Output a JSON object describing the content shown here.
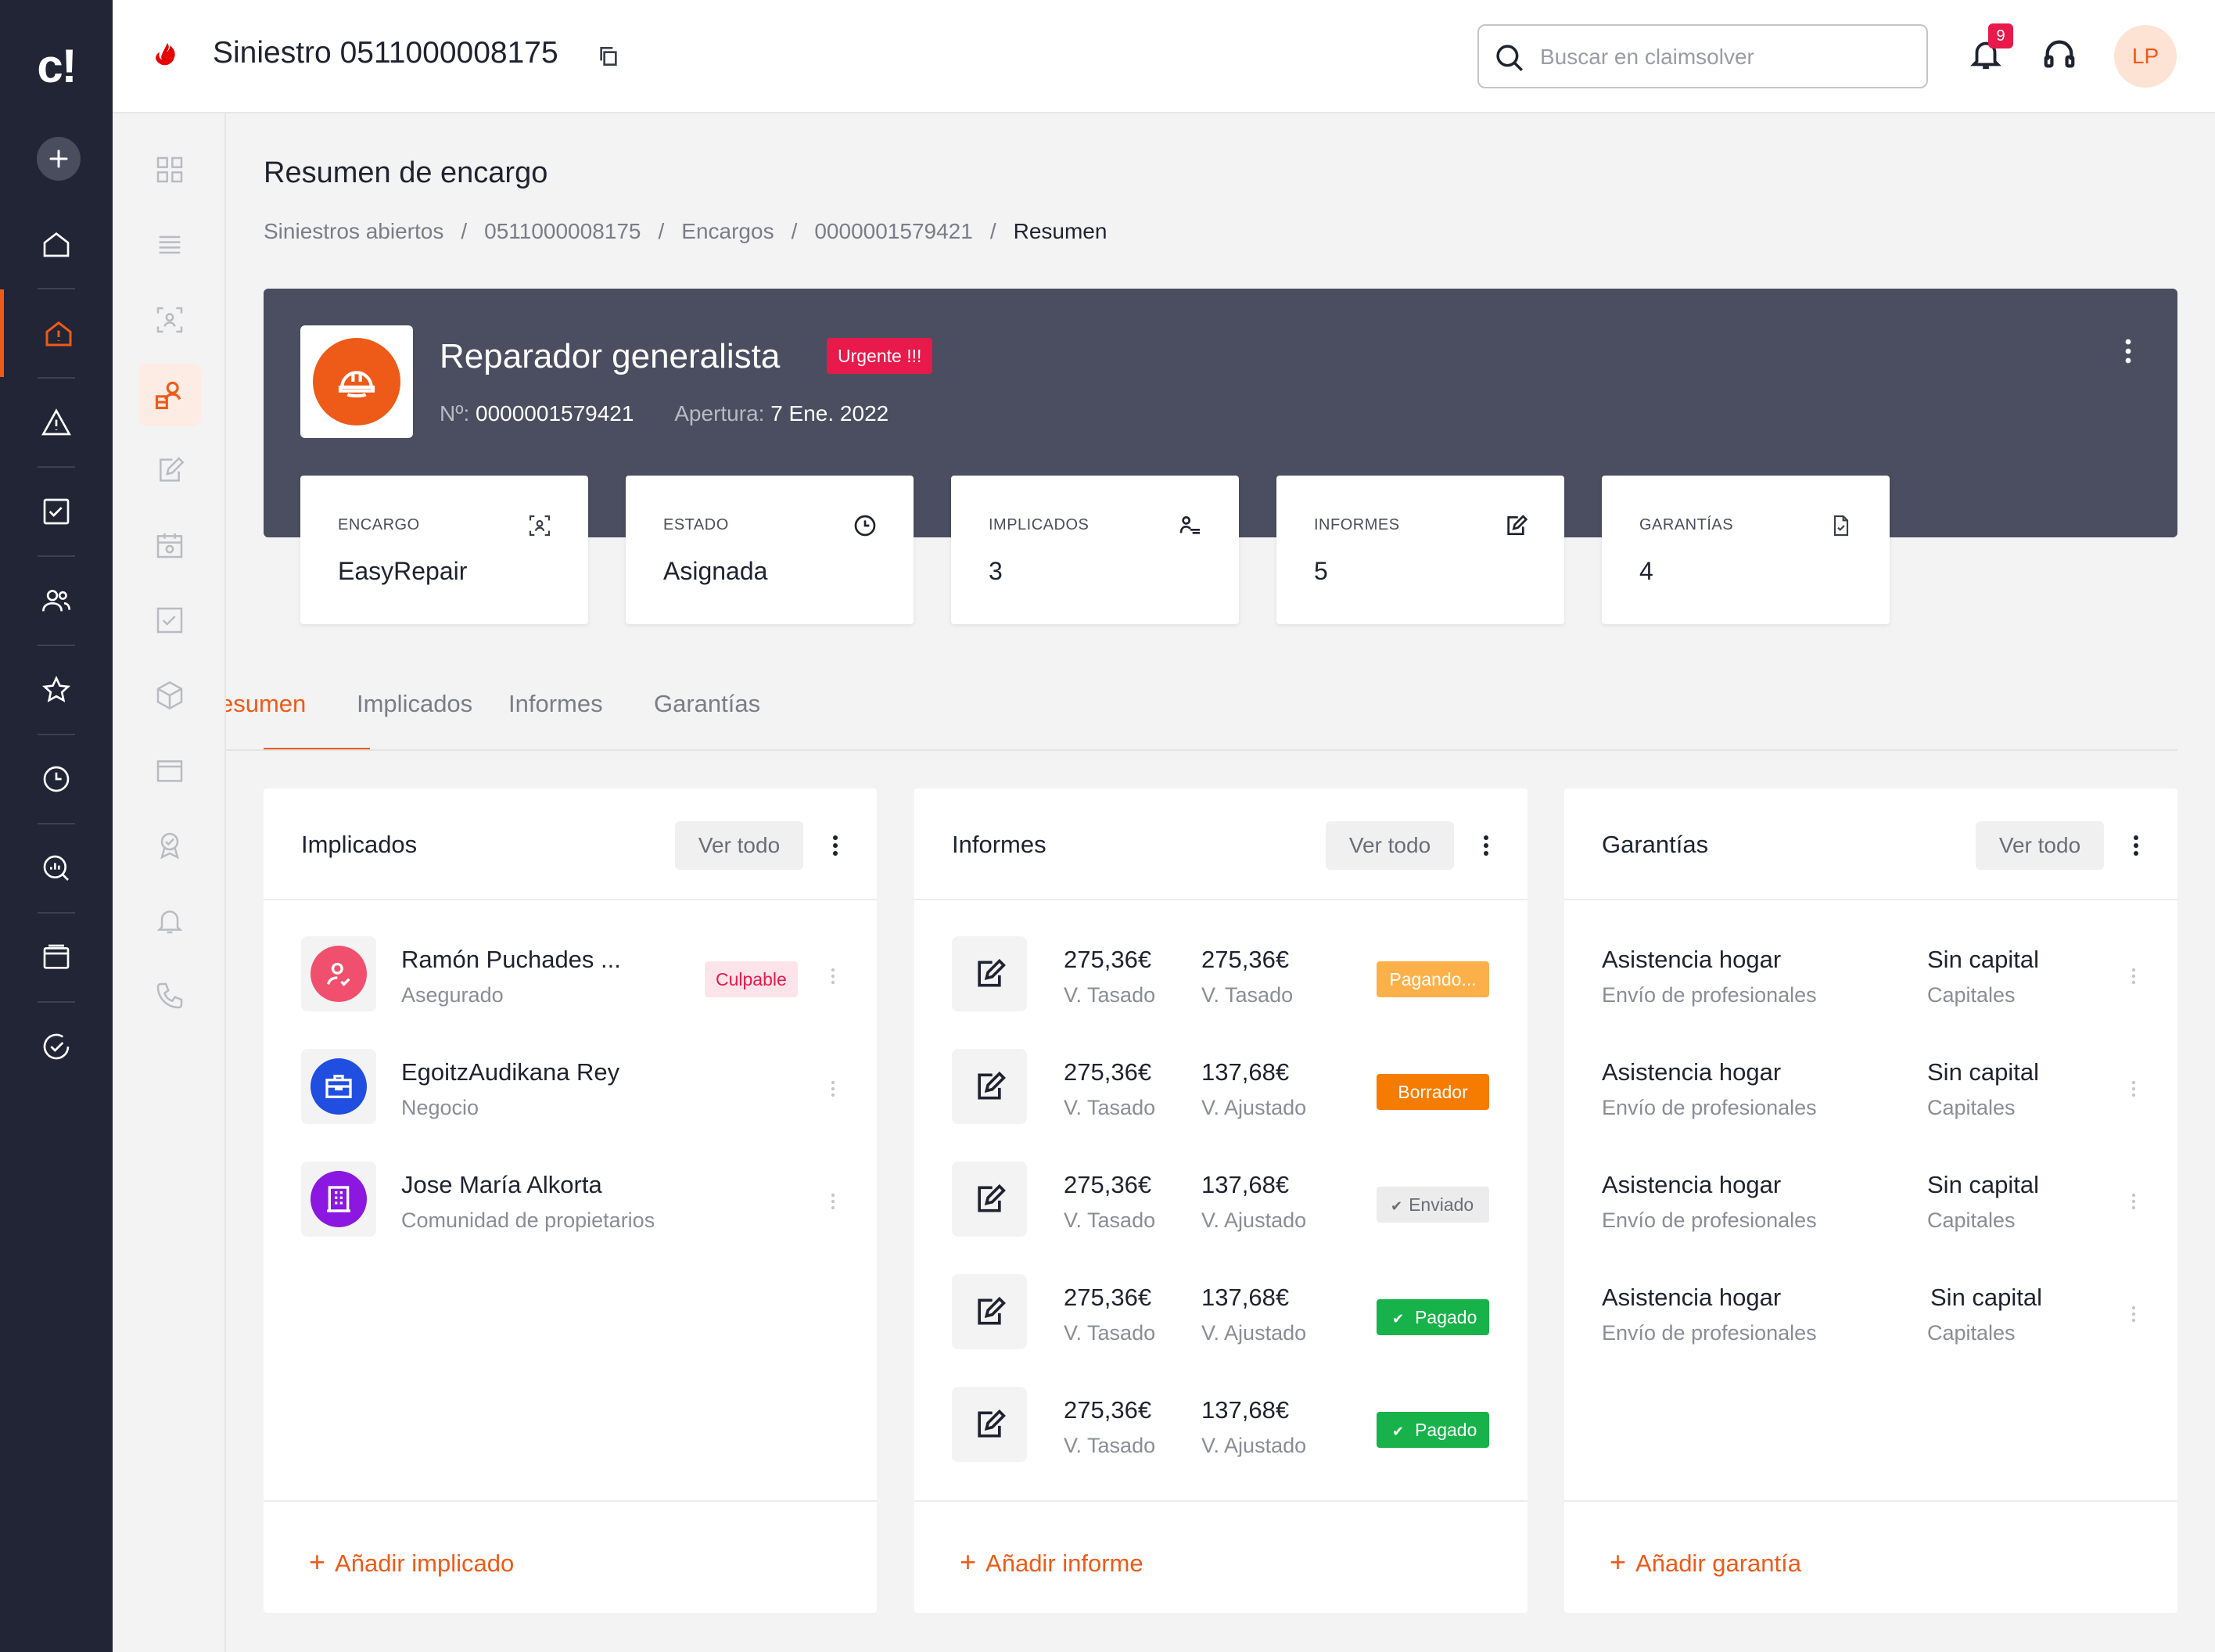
{
  "colors": {
    "accent": "#ee5a18",
    "sidebar": "#222536",
    "hero": "#4b4e60",
    "danger": "#e8194b"
  },
  "app": {
    "logo": "c!"
  },
  "nav": {
    "icons": [
      "plus-icon",
      "home-icon",
      "claim-alert-icon",
      "warning-icon",
      "checkbox-icon",
      "users-icon",
      "star-icon",
      "clock-icon",
      "analytics-icon",
      "window-icon",
      "check-circle-icon"
    ]
  },
  "header": {
    "title": "Siniestro 0511000008175",
    "search_placeholder": "Buscar en claimsolver",
    "notifications": "9",
    "avatar": "LP"
  },
  "page": {
    "title": "Resumen de encargo"
  },
  "breadcrumb": [
    "Siniestros abiertos",
    "0511000008175",
    "Encargos",
    "0000001579421",
    "Resumen"
  ],
  "hero": {
    "title": "Reparador generalista",
    "badge": "Urgente !!!",
    "number_label": "Nº:",
    "number": "0000001579421",
    "opening_label": "Apertura:",
    "opening": "7 Ene. 2022"
  },
  "stats": [
    {
      "label": "ENCARGO",
      "value": "EasyRepair",
      "icon": "assign-icon"
    },
    {
      "label": "ESTADO",
      "value": "Asignada",
      "icon": "clock-icon"
    },
    {
      "label": "IMPLICADOS",
      "value": "3",
      "icon": "involved-icon"
    },
    {
      "label": "INFORMES",
      "value": "5",
      "icon": "report-icon"
    },
    {
      "label": "GARANTÍAS",
      "value": "4",
      "icon": "guarantee-icon"
    }
  ],
  "tabs": [
    "esumen",
    "Implicados",
    "Informes",
    "Garantías"
  ],
  "implicados": {
    "title": "Implicados",
    "view_all": "Ver todo",
    "add": "Añadir implicado",
    "rows": [
      {
        "name": "Ramón Puchades ...",
        "role": "Asegurado",
        "tag": "Culpable",
        "color": "#f0506e"
      },
      {
        "name": "EgoitzAudikana Rey",
        "role": "Negocio",
        "tag": "",
        "color": "#1f4ee0"
      },
      {
        "name": "Jose María Alkorta",
        "role": "Comunidad de propietarios",
        "tag": "",
        "color": "#8b17e0"
      }
    ]
  },
  "informes": {
    "title": "Informes",
    "view_all": "Ver todo",
    "add": "Añadir informe",
    "rows": [
      {
        "v1": "275,36€",
        "l1": "V. Tasado",
        "v2": "275,36€",
        "l2": "V. Tasado",
        "status": "Pagando..."
      },
      {
        "v1": "275,36€",
        "l1": "V. Tasado",
        "v2": "137,68€",
        "l2": "V. Ajustado",
        "status": "Borrador"
      },
      {
        "v1": "275,36€",
        "l1": "V. Tasado",
        "v2": "137,68€",
        "l2": "V. Ajustado",
        "status": "Enviado"
      },
      {
        "v1": "275,36€",
        "l1": "V. Tasado",
        "v2": "137,68€",
        "l2": "V. Ajustado",
        "status": "Pagado"
      },
      {
        "v1": "275,36€",
        "l1": "V. Tasado",
        "v2": "137,68€",
        "l2": "V. Ajustado",
        "status": "Pagado"
      }
    ]
  },
  "garantias": {
    "title": "Garantías",
    "view_all": "Ver todo",
    "add": "Añadir garantía",
    "rows": [
      {
        "name": "Asistencia hogar",
        "desc": "Envío de profesionales",
        "capital": "Sin capital",
        "capital_label": "Capitales"
      },
      {
        "name": "Asistencia hogar",
        "desc": "Envío de profesionales",
        "capital": "Sin capital",
        "capital_label": "Capitales"
      },
      {
        "name": "Asistencia hogar",
        "desc": "Envío de profesionales",
        "capital": "Sin capital",
        "capital_label": "Capitales"
      },
      {
        "name": "Asistencia hogar",
        "desc": "Envío de profesionales",
        "capital": "Sin capital",
        "capital_label": "Capitales"
      }
    ]
  }
}
